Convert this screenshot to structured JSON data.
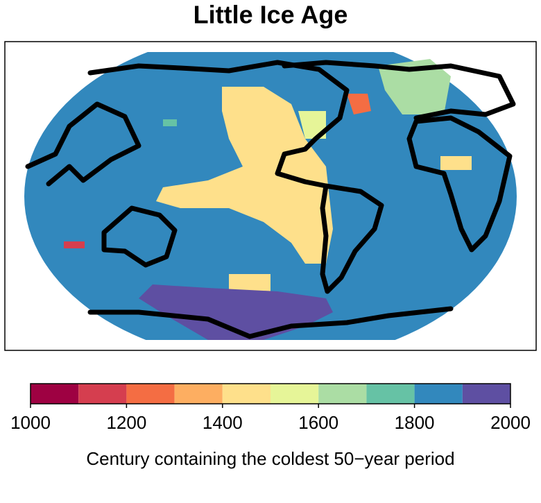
{
  "chart_data": {
    "type": "map",
    "title": "Little Ice Age",
    "patch_values": [
      1800,
      1400,
      1400,
      1900,
      1600,
      1200,
      1100,
      1700,
      1500,
      1400
    ],
    "colorbar": {
      "bins": [
        1000,
        1100,
        1200,
        1300,
        1400,
        1500,
        1600,
        1700,
        1800,
        1900,
        2000
      ],
      "colors": [
        "#9e0142",
        "#d53e4f",
        "#f46d43",
        "#fdae61",
        "#fee08b",
        "#e6f598",
        "#abdda4",
        "#66c2a5",
        "#3288bd",
        "#5e4fa2"
      ],
      "ticks": [
        1000,
        1200,
        1400,
        1600,
        1800,
        2000
      ],
      "label": "Century containing the coldest 50−year period"
    }
  }
}
